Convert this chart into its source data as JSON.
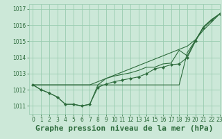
{
  "title": "Graphe pression niveau de la mer (hPa)",
  "bg_color": "#cce8d8",
  "grid_color": "#99ccb0",
  "line_color": "#2d6b3c",
  "xlim": [
    -0.5,
    23
  ],
  "ylim": [
    1010.5,
    1017.3
  ],
  "xticks": [
    0,
    1,
    2,
    3,
    4,
    5,
    6,
    7,
    8,
    9,
    10,
    11,
    12,
    13,
    14,
    15,
    16,
    17,
    18,
    19,
    20,
    21,
    22,
    23
  ],
  "yticks": [
    1011,
    1012,
    1013,
    1014,
    1015,
    1016,
    1017
  ],
  "title_fontsize": 8,
  "tick_fontsize": 5.5,
  "series_with_markers": [
    1012.3,
    1012.0,
    1011.8,
    1011.55,
    1011.1,
    1011.1,
    1011.0,
    1011.1,
    1012.15,
    1012.35,
    1012.5,
    1012.6,
    1012.7,
    1012.8,
    1013.0,
    1013.3,
    1013.4,
    1013.55,
    1013.6,
    1014.0,
    1015.0,
    1015.85,
    1016.3,
    1016.7
  ],
  "series2": [
    1012.3,
    1012.0,
    1011.8,
    1011.55,
    1011.1,
    1011.1,
    1011.0,
    1011.1,
    1012.3,
    1012.7,
    1012.85,
    1012.95,
    1013.05,
    1013.2,
    1013.4,
    1013.4,
    1013.6,
    1013.65,
    1014.45,
    1014.1,
    1015.05,
    1015.9,
    1016.35,
    1016.7
  ],
  "series3": [
    1012.3,
    1012.3,
    1012.3,
    1012.3,
    1012.3,
    1012.3,
    1012.3,
    1012.3,
    1012.5,
    1012.7,
    1012.9,
    1013.1,
    1013.3,
    1013.5,
    1013.7,
    1013.9,
    1014.1,
    1014.3,
    1014.5,
    1014.7,
    1015.1,
    1015.7,
    1016.2,
    1016.7
  ],
  "series4": [
    1012.3,
    1012.3,
    1012.3,
    1012.3,
    1012.3,
    1012.3,
    1012.3,
    1012.3,
    1012.3,
    1012.3,
    1012.3,
    1012.3,
    1012.3,
    1012.3,
    1012.3,
    1012.3,
    1012.3,
    1012.3,
    1012.3,
    1014.3,
    1015.05,
    1015.9,
    1016.35,
    1016.7
  ]
}
